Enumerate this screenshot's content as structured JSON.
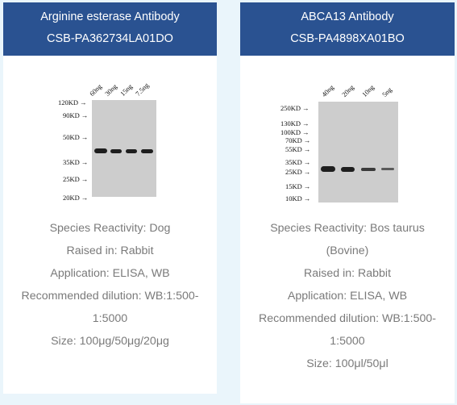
{
  "cards": [
    {
      "title": "Arginine esterase Antibody",
      "sku": "CSB-PA362734LA01DO",
      "blot": {
        "lanes": [
          "60ng",
          "30ng",
          "15ng",
          "7.5ng"
        ],
        "markers": [
          "120KD",
          "90KD",
          "50KD",
          "35KD",
          "25KD",
          "20KD"
        ]
      },
      "info": [
        "Species Reactivity: Dog",
        "Raised in: Rabbit",
        "Application: ELISA, WB",
        "Recommended dilution: WB:1:500-",
        "1:5000",
        "Size: 100μg/50μg/20μg"
      ]
    },
    {
      "title": "ABCA13 Antibody",
      "sku": "CSB-PA4898XA01BO",
      "blot": {
        "lanes": [
          "40ng",
          "20ng",
          "10ng",
          "5ng"
        ],
        "markers": [
          "250KD",
          "130KD",
          "100KD",
          "70KD",
          "55KD",
          "35KD",
          "25KD",
          "15KD",
          "10KD"
        ]
      },
      "info": [
        "Species Reactivity: Bos taurus",
        "(Bovine)",
        "Raised in: Rabbit",
        "Application: ELISA, WB",
        "Recommended dilution: WB:1:500-",
        "1:5000",
        "Size: 100μl/50μl"
      ]
    }
  ],
  "colors": {
    "header": "#2a5291",
    "background": "#eaf5fb",
    "info_text": "#7a7a7a"
  }
}
